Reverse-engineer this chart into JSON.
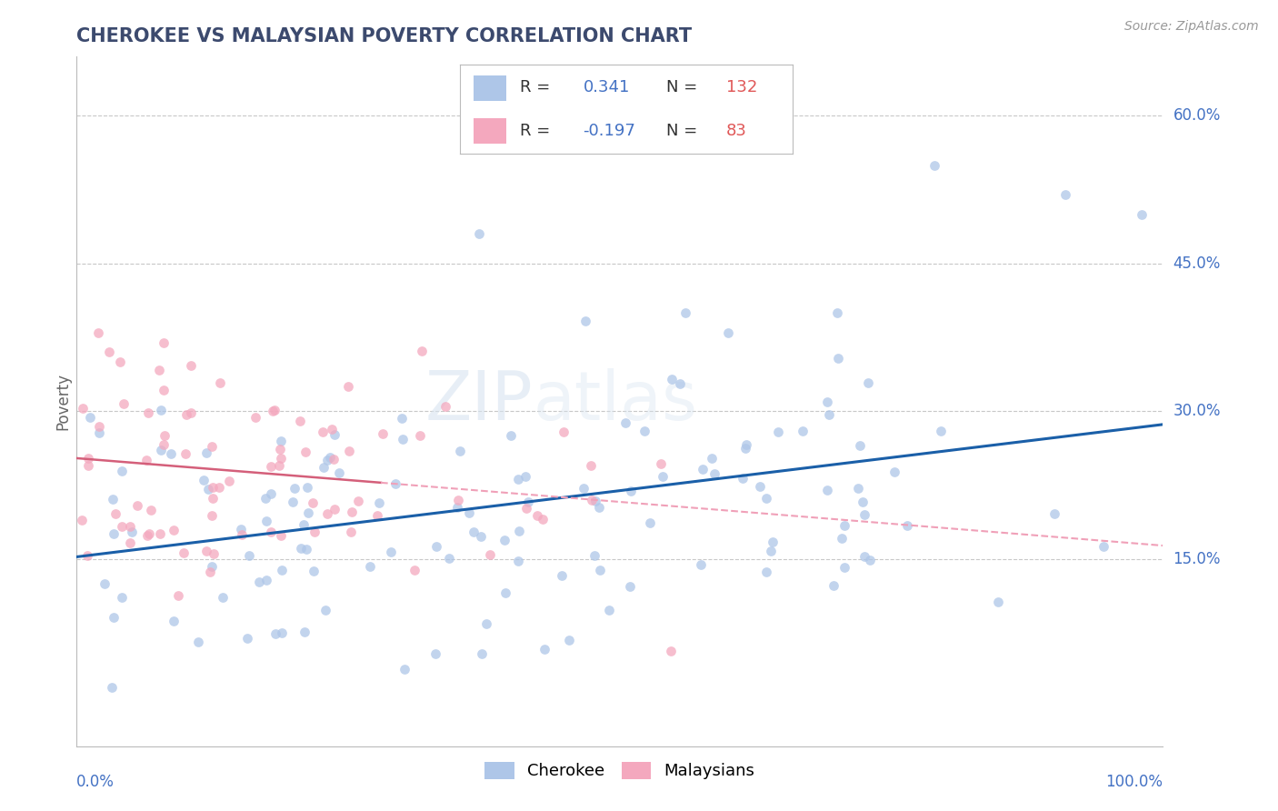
{
  "title": "CHEROKEE VS MALAYSIAN POVERTY CORRELATION CHART",
  "source": "Source: ZipAtlas.com",
  "ylabel": "Poverty",
  "xlim": [
    0.0,
    1.0
  ],
  "ylim": [
    -0.04,
    0.66
  ],
  "cherokee_R": 0.341,
  "cherokee_N": 132,
  "malaysian_R": -0.197,
  "malaysian_N": 83,
  "cherokee_color": "#aec6e8",
  "malaysian_color": "#f4a8be",
  "cherokee_line_color": "#1a5fa8",
  "malaysian_line_color": "#d45f7a",
  "malaysian_line_dashed_color": "#f0a0b8",
  "title_color": "#3c4a6e",
  "axis_label_color": "#4472c4",
  "legend_r_color": "#4472c4",
  "legend_n_color": "#e05858",
  "background_color": "#ffffff",
  "grid_color": "#c8c8c8",
  "watermark": "ZIPatlas",
  "watermark_color": "#e0e8f0",
  "ytick_vals": [
    0.15,
    0.3,
    0.45,
    0.6
  ],
  "ytick_labels": [
    "15.0%",
    "30.0%",
    "45.0%",
    "60.0%"
  ]
}
